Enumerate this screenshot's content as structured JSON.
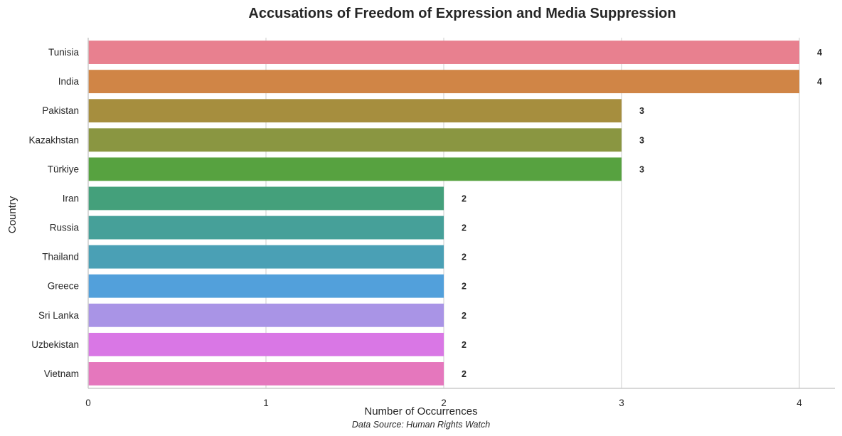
{
  "chart_data": {
    "type": "bar",
    "orientation": "horizontal",
    "title": "Accusations of Freedom of Expression and Media Suppression",
    "xlabel": "Number of Occurrences",
    "ylabel": "Country",
    "xlim": [
      0,
      4.2
    ],
    "x_ticks": [
      0,
      1,
      2,
      3,
      4
    ],
    "grid": "vertical",
    "categories": [
      "Tunisia",
      "India",
      "Pakistan",
      "Kazakhstan",
      "Türkiye",
      "Iran",
      "Russia",
      "Thailand",
      "Greece",
      "Sri Lanka",
      "Uzbekistan",
      "Vietnam"
    ],
    "values": [
      4,
      4,
      3,
      3,
      3,
      2,
      2,
      2,
      2,
      2,
      2,
      2
    ],
    "colors": [
      "#e8808f",
      "#d08546",
      "#a68e3e",
      "#8a9641",
      "#57a240",
      "#44a07b",
      "#46a099",
      "#4aa0b5",
      "#52a0db",
      "#a994e6",
      "#d977e5",
      "#e577bd"
    ],
    "source_note": "Data Source: Human Rights Watch"
  }
}
